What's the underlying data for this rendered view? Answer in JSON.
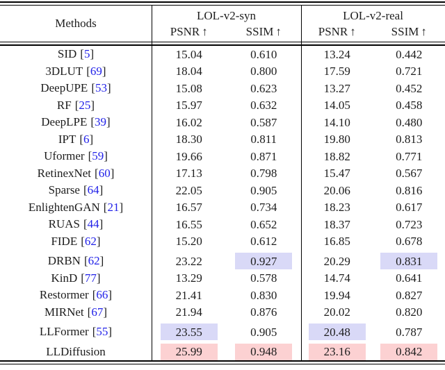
{
  "table": {
    "headers": {
      "methods": "Methods",
      "group_syn": "LOL-v2-syn",
      "group_real": "LOL-v2-real",
      "psnr": "PSNR",
      "ssim": "SSIM",
      "up_arrow": "↑"
    },
    "cite_brackets": [
      "[",
      "]"
    ],
    "colors": {
      "best_highlight": "#fcd1d2",
      "second_highlight": "#d9d9f7",
      "citation_blue": "#2121e8",
      "text": "#1c1c1c",
      "rule": "#000000"
    },
    "rows": [
      {
        "method": "SID",
        "ref_num": "5",
        "syn_psnr": "15.04",
        "syn_ssim": "0.610",
        "real_psnr": "13.24",
        "real_ssim": "0.442"
      },
      {
        "method": "3DLUT",
        "ref_num": "69",
        "syn_psnr": "18.04",
        "syn_ssim": "0.800",
        "real_psnr": "17.59",
        "real_ssim": "0.721"
      },
      {
        "method": "DeepUPE",
        "ref_num": "53",
        "syn_psnr": "15.08",
        "syn_ssim": "0.623",
        "real_psnr": "13.27",
        "real_ssim": "0.452"
      },
      {
        "method": "RF",
        "ref_num": "25",
        "syn_psnr": "15.97",
        "syn_ssim": "0.632",
        "real_psnr": "14.05",
        "real_ssim": "0.458"
      },
      {
        "method": "DeepLPE",
        "ref_num": "39",
        "syn_psnr": "16.02",
        "syn_ssim": "0.587",
        "real_psnr": "14.10",
        "real_ssim": "0.480"
      },
      {
        "method": "IPT",
        "ref_num": "6",
        "syn_psnr": "18.30",
        "syn_ssim": "0.811",
        "real_psnr": "19.80",
        "real_ssim": "0.813"
      },
      {
        "method": "Uformer",
        "ref_num": "59",
        "syn_psnr": "19.66",
        "syn_ssim": "0.871",
        "real_psnr": "18.82",
        "real_ssim": "0.771"
      },
      {
        "method": "RetinexNet",
        "ref_num": "60",
        "syn_psnr": "17.13",
        "syn_ssim": "0.798",
        "real_psnr": "15.47",
        "real_ssim": "0.567"
      },
      {
        "method": "Sparse",
        "ref_num": "64",
        "syn_psnr": "22.05",
        "syn_ssim": "0.905",
        "real_psnr": "20.06",
        "real_ssim": "0.816"
      },
      {
        "method": "EnlightenGAN",
        "ref_num": "21",
        "syn_psnr": "16.57",
        "syn_ssim": "0.734",
        "real_psnr": "18.23",
        "real_ssim": "0.617"
      },
      {
        "method": "RUAS",
        "ref_num": "44",
        "syn_psnr": "16.55",
        "syn_ssim": "0.652",
        "real_psnr": "18.37",
        "real_ssim": "0.723"
      },
      {
        "method": "FIDE",
        "ref_num": "62",
        "syn_psnr": "15.20",
        "syn_ssim": "0.612",
        "real_psnr": "16.85",
        "real_ssim": "0.678"
      },
      {
        "method": "DRBN",
        "ref_num": "62",
        "syn_psnr": "23.22",
        "syn_ssim": "0.927",
        "real_psnr": "20.29",
        "real_ssim": "0.831",
        "group_break": true,
        "highlights": {
          "syn_ssim": "second",
          "real_ssim": "second"
        }
      },
      {
        "method": "KinD",
        "ref_num": "77",
        "syn_psnr": "13.29",
        "syn_ssim": "0.578",
        "real_psnr": "14.74",
        "real_ssim": "0.641"
      },
      {
        "method": "Restormer",
        "ref_num": "66",
        "syn_psnr": "21.41",
        "syn_ssim": "0.830",
        "real_psnr": "19.94",
        "real_ssim": "0.827"
      },
      {
        "method": "MIRNet",
        "ref_num": "67",
        "syn_psnr": "21.94",
        "syn_ssim": "0.876",
        "real_psnr": "20.02",
        "real_ssim": "0.820"
      },
      {
        "method": "LLFormer",
        "ref_num": "55",
        "syn_psnr": "23.55",
        "syn_ssim": "0.905",
        "real_psnr": "20.48",
        "real_ssim": "0.787",
        "group_break": true,
        "highlights": {
          "syn_psnr": "second",
          "real_psnr": "second"
        }
      },
      {
        "method": "LLDiffusion",
        "ref_num": "",
        "syn_psnr": "25.99",
        "syn_ssim": "0.948",
        "real_psnr": "23.16",
        "real_ssim": "0.842",
        "group_break": true,
        "highlights": {
          "syn_psnr": "best",
          "syn_ssim": "best",
          "real_psnr": "best",
          "real_ssim": "best"
        }
      }
    ]
  }
}
